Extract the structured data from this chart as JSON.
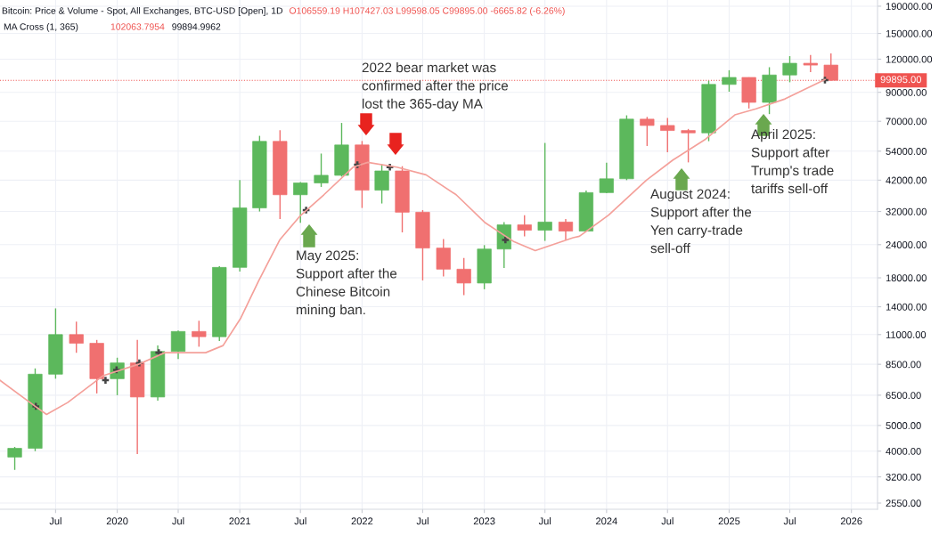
{
  "chart_data": {
    "type": "candlestick",
    "title": "Bitcoin: Price & Volume - Spot, All Exchanges, BTC-USD [Open], 1D",
    "subtitle": "O106559.19 H107427.03 L99598.05 C99895.00 -6665.82 (-6.26%)",
    "annotations": [
      "2022 bear market was\nconfirmed after the price\nlost the 365-day MA",
      "May 2025:\nSupport after the\nChinese Bitcoin\nmining ban.",
      "August 2024:\nSupport after the\nYen carry-trade\nsell-off",
      "April 2025:\nSupport after\nTrump's trade\ntariffs sell-off",
      "MA Cross (1, 365)",
      "102063.7954",
      "99894.9962"
    ],
    "x": [
      "2019-03-01",
      "2019-05-01",
      "2019-07-01",
      "2019-09-01",
      "2019-11-01",
      "2020-01-01",
      "2020-03-01",
      "2020-05-01",
      "2020-07-01",
      "2020-09-01",
      "2020-11-01",
      "2021-01-01",
      "2021-03-01",
      "2021-05-01",
      "2021-07-01",
      "2021-09-01",
      "2021-11-01",
      "2022-01-01",
      "2022-03-01",
      "2022-05-01",
      "2022-07-01",
      "2022-09-01",
      "2022-11-01",
      "2023-01-01",
      "2023-03-01",
      "2023-05-01",
      "2023-07-01",
      "2023-09-01",
      "2023-11-01",
      "2024-01-01",
      "2024-03-01",
      "2024-05-01",
      "2024-07-01",
      "2024-09-01",
      "2024-11-01",
      "2025-01-01",
      "2025-03-01",
      "2025-05-01",
      "2025-07-01",
      "2025-09-01",
      "2025-11-01"
    ],
    "ohlc": [
      [
        3800,
        4150,
        3400,
        4100
      ],
      [
        4100,
        8200,
        4000,
        7800
      ],
      [
        7800,
        13800,
        7500,
        11000
      ],
      [
        11000,
        12300,
        9400,
        10200
      ],
      [
        10200,
        10500,
        6600,
        7500
      ],
      [
        7500,
        9000,
        6500,
        8600
      ],
      [
        8600,
        10500,
        3900,
        6400
      ],
      [
        6400,
        10000,
        6200,
        9500
      ],
      [
        9500,
        11400,
        8900,
        11300
      ],
      [
        11300,
        12400,
        9900,
        10800
      ],
      [
        10800,
        19900,
        10400,
        19700
      ],
      [
        19700,
        42000,
        19000,
        33000
      ],
      [
        33000,
        61700,
        32000,
        58800
      ],
      [
        58800,
        64800,
        30000,
        37000
      ],
      [
        37000,
        41300,
        29000,
        41000
      ],
      [
        41000,
        52900,
        39600,
        43800
      ],
      [
        43800,
        69000,
        43300,
        57000
      ],
      [
        57000,
        59000,
        33000,
        38500
      ],
      [
        38500,
        48200,
        34300,
        45500
      ],
      [
        45500,
        47400,
        26700,
        31800
      ],
      [
        31800,
        32400,
        17600,
        23300
      ],
      [
        23300,
        25200,
        18200,
        19400
      ],
      [
        19400,
        21400,
        15500,
        17200
      ],
      [
        17200,
        23900,
        16300,
        23100
      ],
      [
        23100,
        29200,
        19600,
        28500
      ],
      [
        28500,
        31000,
        25800,
        27200
      ],
      [
        27200,
        58000,
        24800,
        29200
      ],
      [
        29200,
        30000,
        25000,
        27000
      ],
      [
        27000,
        38400,
        26900,
        37700
      ],
      [
        37700,
        48900,
        37500,
        42500
      ],
      [
        42500,
        73700,
        42000,
        71300
      ],
      [
        71300,
        72700,
        56500,
        67500
      ],
      [
        67500,
        72000,
        53500,
        64600
      ],
      [
        64600,
        65500,
        49000,
        63300
      ],
      [
        63300,
        99500,
        58900,
        96400
      ],
      [
        96400,
        109000,
        90500,
        102400
      ],
      [
        102400,
        102500,
        78200,
        82500
      ],
      [
        82500,
        111900,
        74500,
        104600
      ],
      [
        104600,
        123200,
        98200,
        115800
      ],
      [
        115800,
        124500,
        107300,
        114000
      ],
      [
        114000,
        126200,
        99500,
        99895
      ]
    ],
    "colors": [
      "#5cb85c",
      "#5cb85c",
      "#5cb85c",
      "#f07070",
      "#f07070",
      "#5cb85c",
      "#f07070",
      "#5cb85c",
      "#5cb85c",
      "#f07070",
      "#5cb85c",
      "#5cb85c",
      "#5cb85c",
      "#f07070",
      "#5cb85c",
      "#5cb85c",
      "#5cb85c",
      "#f07070",
      "#5cb85c",
      "#f07070",
      "#f07070",
      "#f07070",
      "#f07070",
      "#5cb85c",
      "#5cb85c",
      "#f07070",
      "#5cb85c",
      "#f07070",
      "#5cb85c",
      "#5cb85c",
      "#5cb85c",
      "#f07070",
      "#f07070",
      "#f07070",
      "#5cb85c",
      "#5cb85c",
      "#f07070",
      "#5cb85c",
      "#5cb85c",
      "#f07070",
      "#f07070"
    ],
    "series": [
      {
        "type": "line",
        "color": "#f4a09a",
        "x": [
          "2019-01-16",
          "2019-05-01",
          "2019-06-04",
          "2019-08-06",
          "2019-11-20",
          "2020-03-04",
          "2020-05-22",
          "2020-09-21",
          "2020-11-12",
          "2021-01-04",
          "2021-02-26",
          "2021-04-30",
          "2021-06-29",
          "2021-09-09",
          "2021-12-05",
          "2022-01-18",
          "2022-04-15",
          "2022-07-11",
          "2022-10-09",
          "2023-01-04",
          "2023-03-31",
          "2023-06-02",
          "2023-09-23",
          "2023-10-12",
          "2024-01-07",
          "2024-04-29",
          "2024-07-17",
          "2024-10-23",
          "2025-01-18",
          "2025-03-22",
          "2025-06-17",
          "2025-10-14"
        ],
        "values": [
          7400,
          5900,
          5500,
          6100,
          7700,
          8500,
          9400,
          9400,
          10000,
          12700,
          17500,
          25000,
          30700,
          37000,
          47000,
          49000,
          47000,
          44000,
          37000,
          29000,
          24600,
          22800,
          25500,
          25800,
          31000,
          42000,
          50000,
          60000,
          74000,
          78000,
          85000,
          100500
        ]
      },
      {
        "type": "scatter",
        "color": "#444444",
        "marker": "cross",
        "x": [
          "2019-05-03",
          "2019-11-27",
          "2019-12-30",
          "2020-03-07",
          "2020-05-04",
          "2021-07-18",
          "2021-12-18",
          "2022-03-25",
          "2023-03-05",
          "2025-10-14"
        ],
        "values": [
          5900,
          7400,
          8100,
          8600,
          9400,
          32400,
          48000,
          47000,
          25000,
          100000
        ]
      }
    ],
    "ref_lines": [
      {
        "axis": "y",
        "value": 99895,
        "label": "99895.00",
        "color": "#ef5350",
        "line_style": "dotted"
      }
    ],
    "log": "y",
    "grid": true,
    "ylim": [
      2416,
      200500
    ],
    "yticks": [
      {
        "value": 2550,
        "label": "2550.00"
      },
      {
        "value": 3200,
        "label": "3200.00"
      },
      {
        "value": 4000,
        "label": "4000.00"
      },
      {
        "value": 5000,
        "label": "5000.00"
      },
      {
        "value": 6500,
        "label": "6500.00"
      },
      {
        "value": 8500,
        "label": "8500.00"
      },
      {
        "value": 11000,
        "label": "11000.00"
      },
      {
        "value": 14000,
        "label": "14000.00"
      },
      {
        "value": 18000,
        "label": "18000.00"
      },
      {
        "value": 24000,
        "label": "24000.00"
      },
      {
        "value": 32000,
        "label": "32000.00"
      },
      {
        "value": 42000,
        "label": "42000.00"
      },
      {
        "value": 54000,
        "label": "54000.00"
      },
      {
        "value": 70000,
        "label": "70000.00"
      },
      {
        "value": 90000,
        "label": "90000.00"
      },
      {
        "value": 120000,
        "label": "120000.00"
      },
      {
        "value": 150000,
        "label": "150000.00"
      },
      {
        "value": 190000,
        "label": "190000.00"
      }
    ],
    "xlim": [
      "2019-01-16",
      "2026-03-20"
    ],
    "xticks": [
      {
        "value": "2019-07-01",
        "label": "Jul"
      },
      {
        "value": "2020-01-01",
        "label": "2020"
      },
      {
        "value": "2020-07-01",
        "label": "Jul"
      },
      {
        "value": "2021-01-01",
        "label": "2021"
      },
      {
        "value": "2021-07-01",
        "label": "Jul"
      },
      {
        "value": "2022-01-01",
        "label": "2022"
      },
      {
        "value": "2022-07-01",
        "label": "Jul"
      },
      {
        "value": "2023-01-01",
        "label": "2023"
      },
      {
        "value": "2023-07-01",
        "label": "Jul"
      },
      {
        "value": "2024-01-01",
        "label": "2024"
      },
      {
        "value": "2024-07-01",
        "label": "Jul"
      },
      {
        "value": "2025-01-01",
        "label": "2025"
      },
      {
        "value": "2025-07-01",
        "label": "Jul"
      },
      {
        "value": "2026-01-01",
        "label": "2026"
      }
    ]
  }
}
